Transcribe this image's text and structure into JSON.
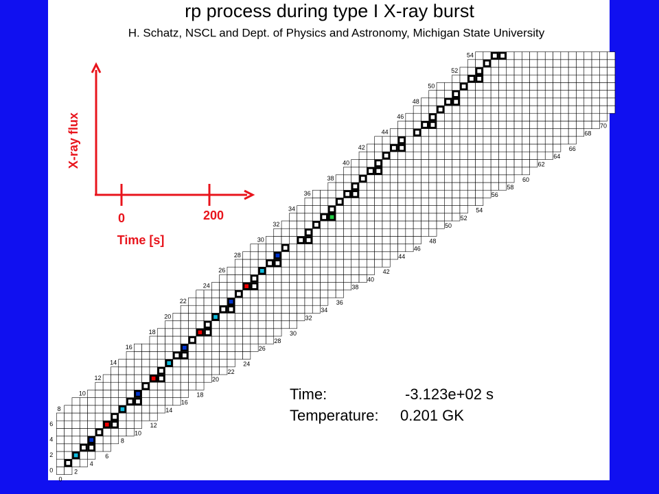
{
  "title": "rp process during type I X-ray burst",
  "subtitle": "H. Schatz, NSCL and Dept. of Physics and Astronomy, Michigan State University",
  "inset": {
    "y_label": "X-ray flux",
    "x_label": "Time [s]",
    "ticks": [
      "0",
      "200"
    ]
  },
  "chart": {
    "z_labels": [
      0,
      2,
      4,
      6,
      8,
      10,
      12,
      14,
      16,
      18,
      20,
      22,
      24,
      26,
      28,
      30,
      32,
      34,
      36,
      38,
      40,
      42,
      44,
      46,
      48,
      50,
      52,
      54
    ],
    "n_labels": [
      0,
      2,
      4,
      6,
      8,
      10,
      12,
      14,
      16,
      18,
      20,
      22,
      24,
      26,
      28,
      30,
      32,
      34,
      36,
      38,
      40,
      42,
      44,
      46,
      48,
      50,
      52,
      54,
      56,
      58,
      60,
      62,
      64,
      66,
      68,
      70
    ]
  },
  "status": {
    "time_label": "Time:",
    "time_value": "-3.123e+02 s",
    "temp_label": "Temperature:",
    "temp_value": "0.201 GK"
  }
}
